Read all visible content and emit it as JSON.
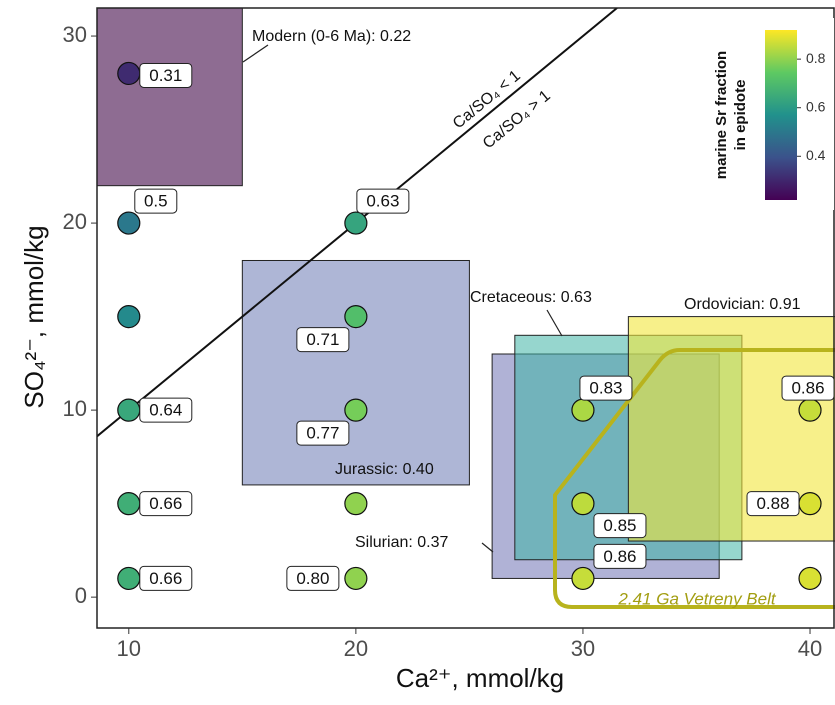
{
  "chart_data": {
    "type": "scatter",
    "x_label": "Ca²⁺, mmol/kg",
    "y_label": "SO₄²⁻, mmol/kg",
    "xlim": [
      8.6,
      41.1
    ],
    "ylim": [
      -1.65,
      31.5
    ],
    "xticks": [
      10,
      20,
      30,
      40
    ],
    "yticks": [
      0,
      10,
      20,
      30
    ],
    "series": [
      {
        "x": [
          10,
          10,
          10,
          10,
          10,
          10,
          20,
          20,
          20,
          20,
          20,
          30,
          30,
          30,
          40,
          40,
          40
        ],
        "values": [
          28,
          20,
          15,
          10,
          5,
          1,
          20,
          15,
          10,
          5,
          1,
          10,
          5,
          1,
          10,
          5,
          1
        ],
        "fraction": [
          0.31,
          0.5,
          0.55,
          0.64,
          0.66,
          0.66,
          0.63,
          0.71,
          0.77,
          0.8,
          0.8,
          0.83,
          0.85,
          0.86,
          0.86,
          0.88,
          0.88
        ],
        "value_labels": [
          "0.31",
          "0.5",
          null,
          "0.64",
          "0.66",
          "0.66",
          "0.63",
          "0.71",
          "0.77",
          null,
          "0.80",
          "0.83",
          "0.85",
          "0.86",
          "0.86",
          "0.88",
          null
        ]
      }
    ],
    "regions": [
      {
        "label": "Modern (0-6 Ma): 0.22",
        "ca": [
          8.6,
          15
        ],
        "so4": [
          22,
          31.5
        ],
        "color": "#7a527f"
      },
      {
        "label": "Jurassic: 0.40",
        "ca": [
          15,
          25
        ],
        "so4": [
          6,
          18
        ],
        "color": "#9aa4cc"
      },
      {
        "label": "Silurian: 0.37",
        "ca": [
          26,
          36
        ],
        "so4": [
          1,
          13
        ],
        "color": "#8589c0"
      },
      {
        "label": "Cretaceous: 0.63",
        "ca": [
          27,
          37
        ],
        "so4": [
          2,
          14
        ],
        "color": "#3fb5a5"
      },
      {
        "label": "Ordovician: 0.91",
        "ca": [
          32,
          42
        ],
        "so4": [
          3,
          15
        ],
        "color": "#f2e63c"
      }
    ],
    "belt_label": "2.41 Ga Vetreny Belt",
    "line_labels": [
      "Ca/SO₄ < 1",
      "Ca/SO₄ > 1"
    ],
    "colorbar_title": [
      "marine Sr fraction",
      "in epidote"
    ],
    "clim": [
      0.22,
      0.92
    ],
    "cticks": [
      0.4,
      0.6,
      0.8
    ],
    "colormap": [
      "#440154",
      "#3b528b",
      "#21918c",
      "#5ec962",
      "#fde725"
    ]
  }
}
